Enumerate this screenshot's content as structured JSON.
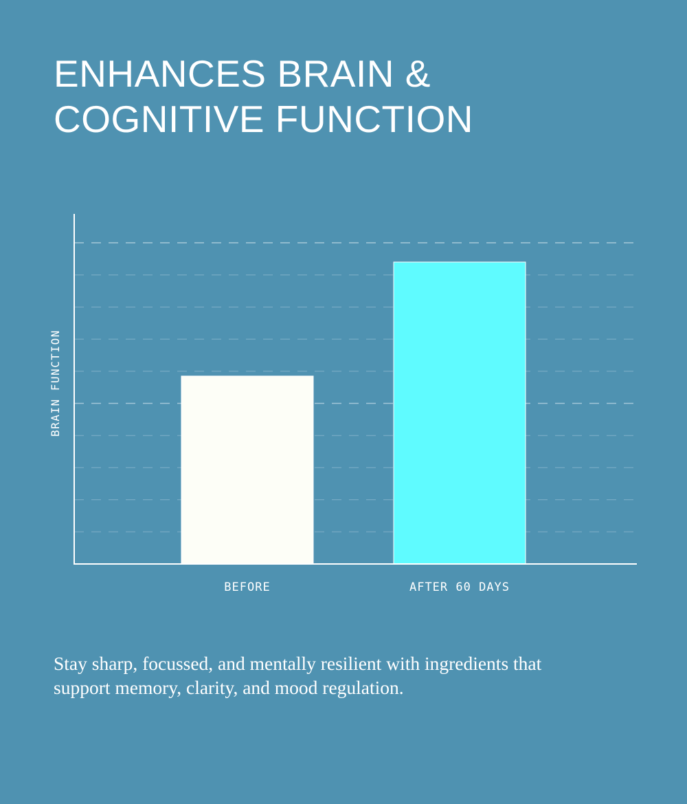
{
  "title_lines": [
    "ENHANCES BRAIN &",
    "COGNITIVE FUNCTION"
  ],
  "caption": "Stay sharp, focussed, and mentally resilient with ingredients that support memory, clarity, and mood regulation.",
  "colors": {
    "background": "#4f92b1",
    "before_bar": "#fdfef7",
    "after_bar": "#5ffbff",
    "axis": "#ffffff",
    "grid": "#a9cadb"
  },
  "chart_data": {
    "type": "bar",
    "categories": [
      "BEFORE",
      "AFTER 60 DAYS"
    ],
    "values": [
      58.5,
      94
    ],
    "ylabel": "BRAIN FUNCTION",
    "xlabel": "",
    "ylim": [
      0,
      100
    ],
    "grid_values": [
      10,
      20,
      30,
      40,
      50,
      60,
      70,
      80,
      90,
      100
    ],
    "grid_major_values": [
      50,
      100
    ],
    "grid": true,
    "y_tick_labels": false
  }
}
